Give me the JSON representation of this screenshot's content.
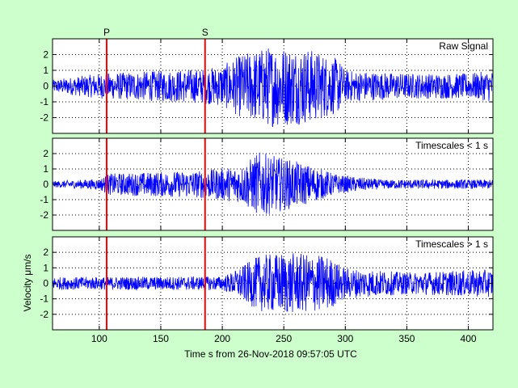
{
  "figure": {
    "background": "#ccffcc",
    "plot_background": "#ffffff",
    "signal_color": "#0000ff",
    "marker_color": "#ff0000"
  },
  "chart_data": {
    "type": "line",
    "xlabel": "Time s from 26-Nov-2018 09:57:05 UTC",
    "ylabel": "Velocity μm/s",
    "xlim": [
      62,
      420
    ],
    "xticks": [
      100,
      150,
      200,
      250,
      300,
      350,
      400
    ],
    "xtick_labels": [
      "100",
      "150",
      "200",
      "250",
      "300",
      "350",
      "400"
    ],
    "grid": true,
    "phase_markers": [
      {
        "label": "P",
        "x": 106
      },
      {
        "label": "S",
        "x": 186
      }
    ],
    "panels": [
      {
        "title": "Raw Signal",
        "ylim": [
          -3,
          3
        ],
        "yticks": [
          2,
          1,
          0,
          -1,
          -2
        ],
        "ytick_labels": [
          "2",
          "1",
          "0",
          "-1",
          "-2"
        ],
        "envelope": [
          {
            "t": 62,
            "a": 0.4
          },
          {
            "t": 100,
            "a": 0.8
          },
          {
            "t": 185,
            "a": 1.1
          },
          {
            "t": 200,
            "a": 1.3
          },
          {
            "t": 215,
            "a": 2.0
          },
          {
            "t": 240,
            "a": 2.6
          },
          {
            "t": 270,
            "a": 2.4
          },
          {
            "t": 295,
            "a": 1.7
          },
          {
            "t": 300,
            "a": 1.0
          },
          {
            "t": 350,
            "a": 0.8
          },
          {
            "t": 400,
            "a": 0.8
          },
          {
            "t": 420,
            "a": 1.0
          }
        ]
      },
      {
        "title": "Timescales < 1 s",
        "ylim": [
          -3,
          3
        ],
        "yticks": [
          2,
          1,
          0,
          -1,
          -2
        ],
        "ytick_labels": [
          "2",
          "1",
          "0",
          "-1",
          "-2"
        ],
        "envelope": [
          {
            "t": 62,
            "a": 0.2
          },
          {
            "t": 100,
            "a": 0.35
          },
          {
            "t": 108,
            "a": 0.7
          },
          {
            "t": 185,
            "a": 0.9
          },
          {
            "t": 215,
            "a": 1.2
          },
          {
            "t": 230,
            "a": 2.1
          },
          {
            "t": 265,
            "a": 1.4
          },
          {
            "t": 295,
            "a": 0.6
          },
          {
            "t": 330,
            "a": 0.3
          },
          {
            "t": 420,
            "a": 0.3
          }
        ]
      },
      {
        "title": "Timescales > 1 s",
        "ylim": [
          -3,
          3
        ],
        "yticks": [
          2,
          1,
          0,
          -1,
          -2
        ],
        "ytick_labels": [
          "2",
          "1",
          "0",
          "-1",
          "-2"
        ],
        "envelope": [
          {
            "t": 62,
            "a": 0.4
          },
          {
            "t": 200,
            "a": 0.45
          },
          {
            "t": 210,
            "a": 0.8
          },
          {
            "t": 230,
            "a": 1.8
          },
          {
            "t": 250,
            "a": 2.0
          },
          {
            "t": 285,
            "a": 1.8
          },
          {
            "t": 300,
            "a": 1.0
          },
          {
            "t": 350,
            "a": 0.7
          },
          {
            "t": 420,
            "a": 0.9
          }
        ]
      }
    ]
  }
}
